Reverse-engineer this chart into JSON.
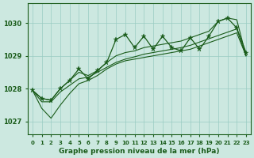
{
  "hours": [
    0,
    1,
    2,
    3,
    4,
    5,
    6,
    7,
    8,
    9,
    10,
    11,
    12,
    13,
    14,
    15,
    16,
    17,
    18,
    19,
    20,
    21,
    22,
    23
  ],
  "pressure_main": [
    1027.95,
    1027.7,
    1027.65,
    1028.0,
    1028.25,
    1028.6,
    1028.3,
    1028.55,
    1028.8,
    1029.5,
    1029.65,
    1029.25,
    1029.6,
    1029.2,
    1029.6,
    1029.25,
    1029.15,
    1029.55,
    1029.2,
    1029.6,
    1030.05,
    1030.15,
    1029.85,
    1029.1
  ],
  "pressure_high": [
    1027.95,
    1027.7,
    1027.65,
    1028.0,
    1028.25,
    1028.5,
    1028.4,
    1028.55,
    1028.8,
    1029.0,
    1029.1,
    1029.15,
    1029.25,
    1029.3,
    1029.35,
    1029.4,
    1029.45,
    1029.55,
    1029.65,
    1029.75,
    1030.05,
    1030.15,
    1030.1,
    1029.0
  ],
  "pressure_low_smooth": [
    1027.95,
    1027.4,
    1027.1,
    1027.5,
    1027.85,
    1028.15,
    1028.25,
    1028.4,
    1028.6,
    1028.75,
    1028.85,
    1028.9,
    1028.95,
    1029.0,
    1029.05,
    1029.1,
    1029.15,
    1029.2,
    1029.3,
    1029.4,
    1029.5,
    1029.6,
    1029.7,
    1029.0
  ],
  "pressure_mid_smooth": [
    1027.95,
    1027.6,
    1027.6,
    1027.9,
    1028.1,
    1028.3,
    1028.35,
    1028.5,
    1028.65,
    1028.8,
    1028.9,
    1028.97,
    1029.05,
    1029.1,
    1029.15,
    1029.2,
    1029.25,
    1029.32,
    1029.42,
    1029.52,
    1029.62,
    1029.72,
    1029.82,
    1029.0
  ],
  "ylim": [
    1026.6,
    1030.6
  ],
  "yticks": [
    1027,
    1028,
    1029,
    1030
  ],
  "line_color": "#1a5c1a",
  "bg_color": "#cce8e0",
  "grid_color": "#99ccc2",
  "xlabel": "Graphe pression niveau de la mer (hPa)"
}
